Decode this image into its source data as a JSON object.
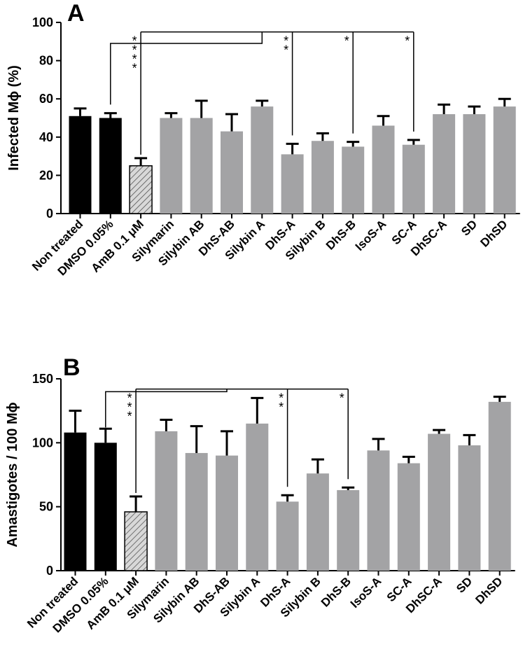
{
  "colors": {
    "black": "#000000",
    "gray": "#a3a3a5",
    "hatch": "#d8d8d8"
  },
  "chart_data": [
    {
      "type": "bar",
      "panel": "A",
      "title": "",
      "xlabel": "",
      "ylabel": "Infected Mϕ (%)",
      "ylim": [
        0,
        100
      ],
      "yticks": [
        "0",
        "20",
        "40",
        "60",
        "80",
        "100"
      ],
      "categories": [
        "Non treated",
        "DMSO 0.05%",
        "AmB 0.1 μM",
        "Silymarin",
        "Silybin AB",
        "DhS-AB",
        "Silybin A",
        "DhS-A",
        "Silybin B",
        "DhS-B",
        "IsoS-A",
        "SC-A",
        "DhSC-A",
        "SD",
        "DhSD"
      ],
      "values": [
        51,
        50,
        25,
        50,
        50,
        43,
        56,
        31,
        38,
        35,
        46,
        36,
        52,
        52,
        56
      ],
      "errors": [
        4,
        2.5,
        4,
        2.5,
        9,
        9,
        3,
        5.5,
        4,
        2.5,
        5,
        2.5,
        5,
        4,
        4
      ],
      "styles": [
        "black",
        "black",
        "hatch",
        "gray",
        "gray",
        "gray",
        "gray",
        "gray",
        "gray",
        "gray",
        "gray",
        "gray",
        "gray",
        "gray",
        "gray"
      ],
      "annotations": [
        {
          "target": "AmB 0.1 μM",
          "label": "****"
        },
        {
          "target": "DhS-A",
          "label": "**"
        },
        {
          "target": "DhS-B",
          "label": "*"
        },
        {
          "target": "SC-A",
          "label": "*"
        }
      ],
      "brackets": {
        "upper": [
          "DMSO 0.05%",
          "Silybin A"
        ],
        "drop_from": 95
      }
    },
    {
      "type": "bar",
      "panel": "B",
      "title": "",
      "xlabel": "",
      "ylabel": "Amastigotes / 100 Mϕ",
      "ylim": [
        0,
        150
      ],
      "yticks": [
        "0",
        "50",
        "100",
        "150"
      ],
      "categories": [
        "Non treated",
        "DMSO 0.05%",
        "AmB 0.1 μM",
        "Silymarin",
        "Silybin AB",
        "DhS-AB",
        "Silybin A",
        "DhS-A",
        "Silybin B",
        "DhS-B",
        "IsoS-A",
        "SC-A",
        "DhSC-A",
        "SD",
        "DhSD"
      ],
      "values": [
        108,
        100,
        46,
        109,
        92,
        90,
        115,
        54,
        76,
        63,
        94,
        84,
        107,
        98,
        132
      ],
      "errors": [
        17,
        11,
        12,
        9,
        21,
        19,
        20,
        5,
        11,
        2,
        9,
        5,
        3,
        8,
        4
      ],
      "styles": [
        "black",
        "black",
        "hatch",
        "gray",
        "gray",
        "gray",
        "gray",
        "gray",
        "gray",
        "gray",
        "gray",
        "gray",
        "gray",
        "gray",
        "gray"
      ],
      "annotations": [
        {
          "target": "AmB 0.1 μM",
          "label": "***"
        },
        {
          "target": "DhS-A",
          "label": "**"
        },
        {
          "target": "DhS-B",
          "label": "*"
        }
      ],
      "brackets": {
        "upper": [
          "DMSO 0.05%",
          "DhS-AB"
        ],
        "drop_from": 142
      }
    }
  ]
}
